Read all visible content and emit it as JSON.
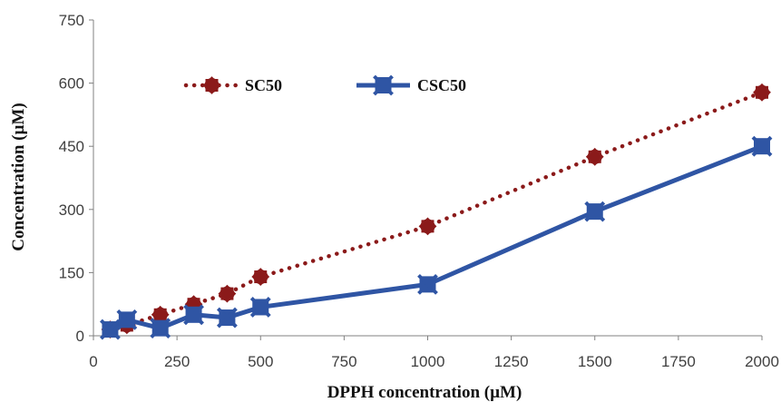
{
  "chart_data": {
    "type": "line",
    "xlabel": "DPPH concentration (µM)",
    "ylabel": "Concentration (µM)",
    "xlim": [
      0,
      2000
    ],
    "ylim": [
      0,
      750
    ],
    "x_ticks": [
      "0",
      "250",
      "500",
      "750",
      "1000",
      "1250",
      "1500",
      "1750",
      "2000"
    ],
    "y_ticks": [
      "0",
      "150",
      "300",
      "450",
      "600",
      "750"
    ],
    "grid": false,
    "legend": "top-left",
    "series": [
      {
        "name": "SC50",
        "color": "#8B1A1A",
        "line_style": "dotted",
        "marker": "circle",
        "x": [
          50,
          100,
          200,
          300,
          400,
          500,
          1000,
          1500,
          2000
        ],
        "values": [
          15,
          25,
          50,
          75,
          100,
          140,
          260,
          425,
          578
        ]
      },
      {
        "name": "CSC50",
        "color": "#2F55A4",
        "line_style": "solid",
        "marker": "square",
        "x": [
          50,
          100,
          200,
          300,
          400,
          500,
          1000,
          1500,
          2000
        ],
        "values": [
          15,
          38,
          18,
          50,
          43,
          68,
          122,
          295,
          450
        ]
      }
    ]
  }
}
